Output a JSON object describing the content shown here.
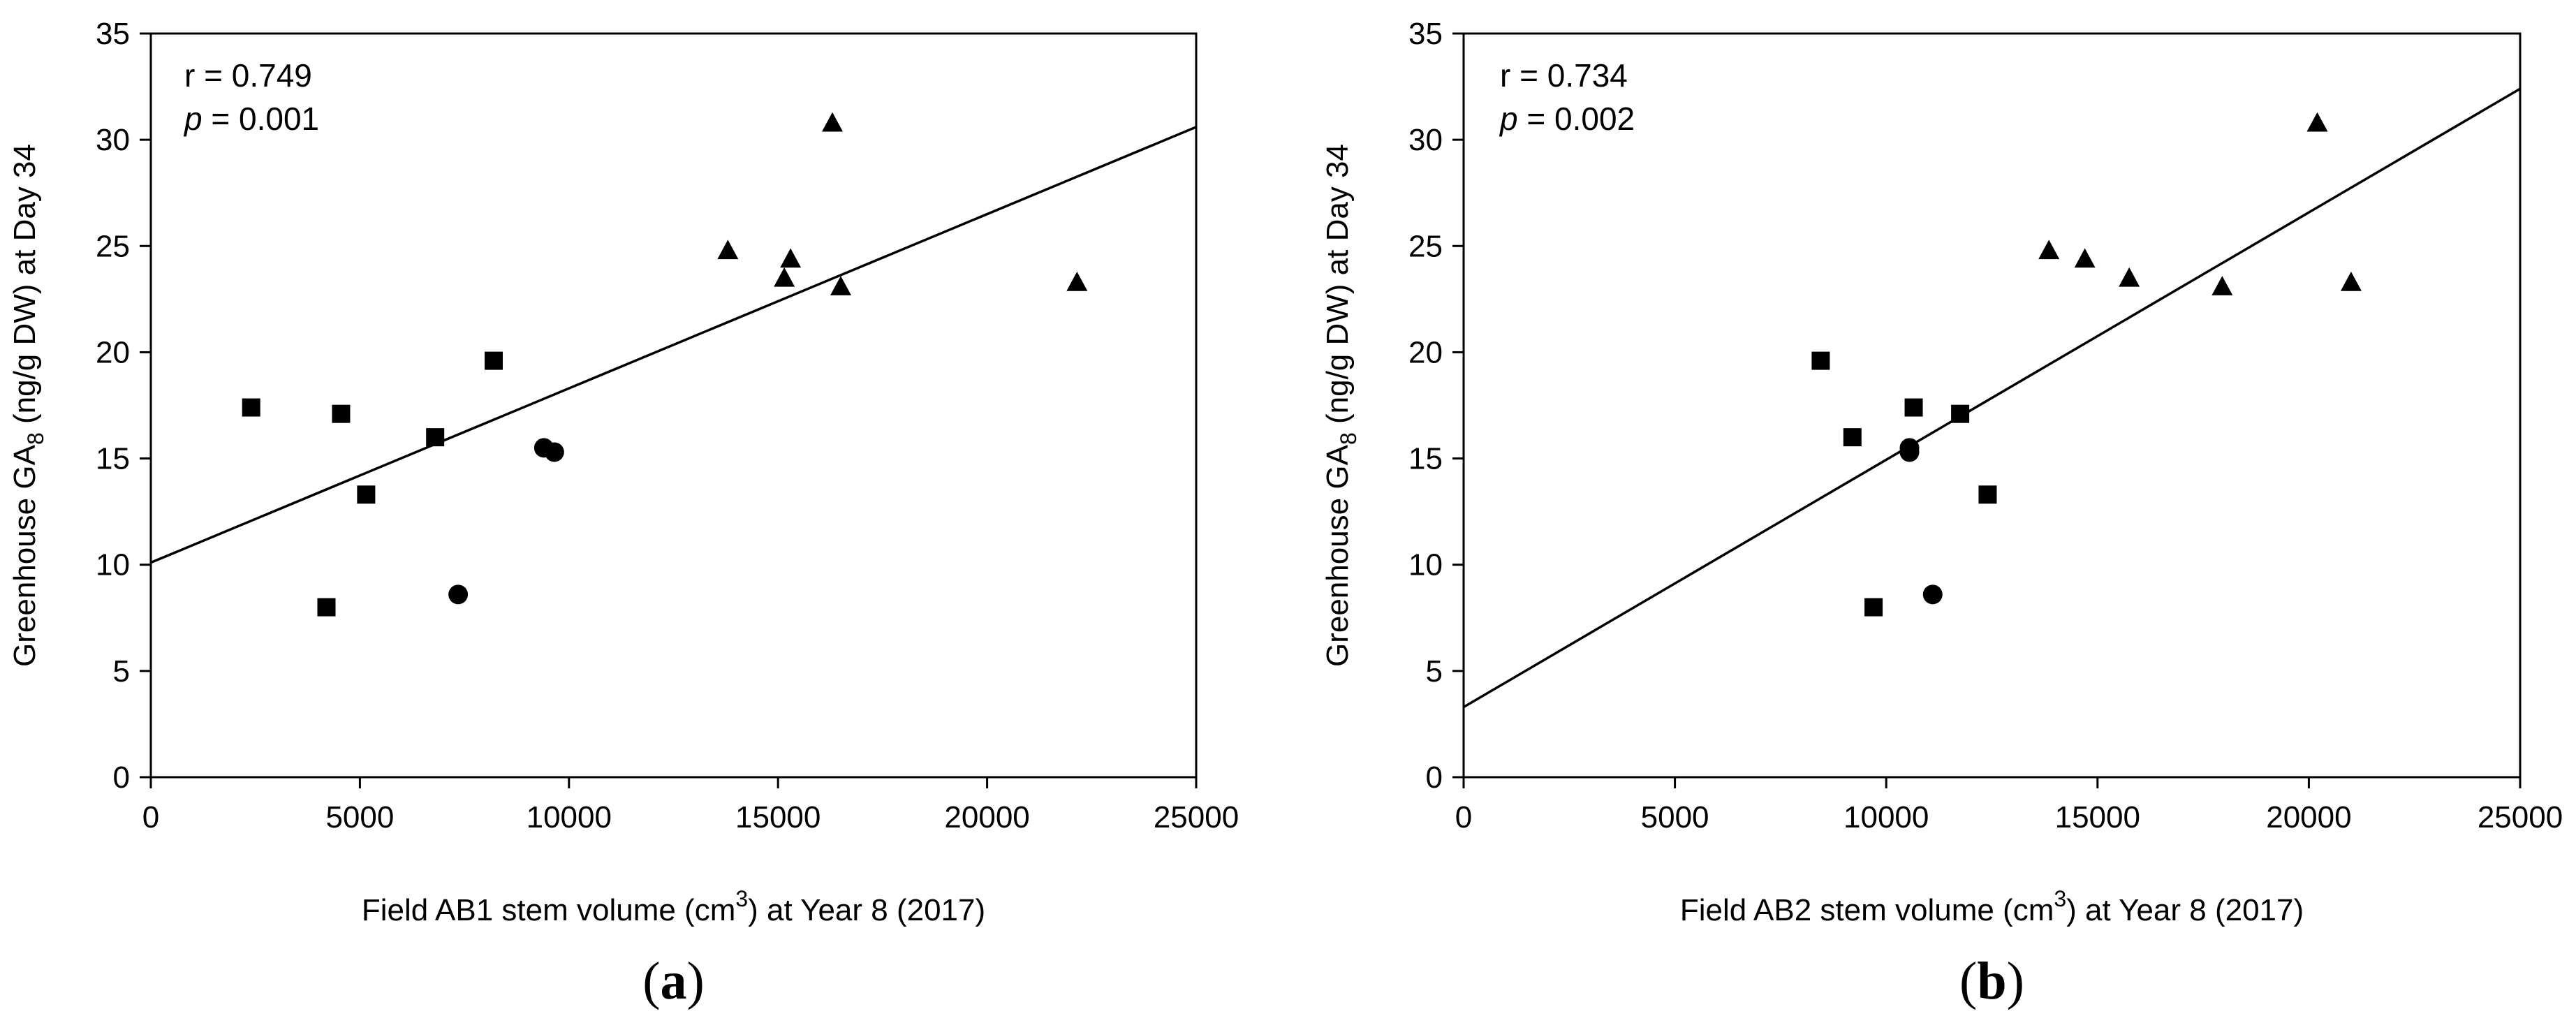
{
  "chart_data": [
    {
      "type": "scatter",
      "panel_label": "a",
      "xlabel": {
        "pre": "Field AB1 stem volume (cm",
        "sup": "3",
        "post": ") at Year 8 (2017)"
      },
      "ylabel": {
        "pre": "Greenhouse GA",
        "sub": "8",
        "post": " (ng/g DW) at Day 34"
      },
      "xlim": [
        0,
        25000
      ],
      "ylim": [
        0,
        35
      ],
      "x_ticks": [
        0,
        5000,
        10000,
        15000,
        20000,
        25000
      ],
      "y_ticks": [
        0,
        5,
        10,
        15,
        20,
        25,
        30,
        35
      ],
      "x_tick_labels": [
        "0",
        "5000",
        "10000",
        "15000",
        "20000",
        "25000"
      ],
      "y_tick_labels": [
        "0",
        "5",
        "10",
        "15",
        "20",
        "25",
        "30",
        "35"
      ],
      "stats": {
        "r_text": "r = 0.749",
        "p_symbol": "p",
        "p_value": " = 0.001"
      },
      "regression": {
        "intercept": 10.1,
        "slope": 0.00082
      },
      "series": [
        {
          "marker": "square",
          "points": [
            [
              2400,
              17.4
            ],
            [
              4200,
              8.0
            ],
            [
              4550,
              17.1
            ],
            [
              5150,
              13.3
            ],
            [
              6800,
              16.0
            ],
            [
              8200,
              19.6
            ]
          ]
        },
        {
          "marker": "circle",
          "points": [
            [
              7350,
              8.6
            ],
            [
              9400,
              15.5
            ],
            [
              9650,
              15.3
            ]
          ]
        },
        {
          "marker": "triangle",
          "points": [
            [
              13800,
              24.8
            ],
            [
              15150,
              23.5
            ],
            [
              15300,
              24.4
            ],
            [
              16300,
              30.8
            ],
            [
              16500,
              23.1
            ],
            [
              22150,
              23.3
            ]
          ]
        }
      ]
    },
    {
      "type": "scatter",
      "panel_label": "b",
      "xlabel": {
        "pre": "Field AB2 stem volume (cm",
        "sup": "3",
        "post": ") at Year 8 (2017)"
      },
      "ylabel": {
        "pre": "Greenhouse GA",
        "sub": "8",
        "post": " (ng/g DW) at Day 34"
      },
      "xlim": [
        0,
        25000
      ],
      "ylim": [
        0,
        35
      ],
      "x_ticks": [
        0,
        5000,
        10000,
        15000,
        20000,
        25000
      ],
      "y_ticks": [
        0,
        5,
        10,
        15,
        20,
        25,
        30,
        35
      ],
      "x_tick_labels": [
        "0",
        "5000",
        "10000",
        "15000",
        "20000",
        "25000"
      ],
      "y_tick_labels": [
        "0",
        "5",
        "10",
        "15",
        "20",
        "25",
        "30",
        "35"
      ],
      "stats": {
        "r_text": "r = 0.734",
        "p_symbol": "p",
        "p_value": " = 0.002"
      },
      "regression": {
        "intercept": 3.3,
        "slope": 0.001164
      },
      "series": [
        {
          "marker": "square",
          "points": [
            [
              8450,
              19.6
            ],
            [
              9200,
              16.0
            ],
            [
              9700,
              8.0
            ],
            [
              10650,
              17.4
            ],
            [
              11750,
              17.1
            ],
            [
              12400,
              13.3
            ]
          ]
        },
        {
          "marker": "circle",
          "points": [
            [
              10550,
              15.5
            ],
            [
              10550,
              15.3
            ],
            [
              11100,
              8.6
            ]
          ]
        },
        {
          "marker": "triangle",
          "points": [
            [
              13850,
              24.8
            ],
            [
              14700,
              24.4
            ],
            [
              15750,
              23.5
            ],
            [
              17950,
              23.1
            ],
            [
              20200,
              30.8
            ],
            [
              21000,
              23.3
            ]
          ]
        }
      ]
    }
  ]
}
